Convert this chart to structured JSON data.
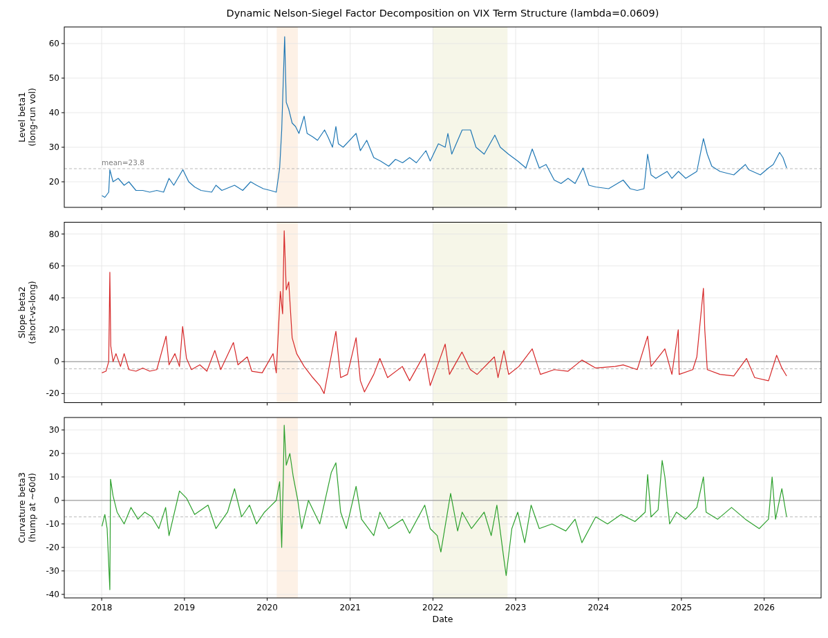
{
  "chart_data": [
    {
      "type": "line",
      "title": "Dynamic Nelson-Siegel Factor Decomposition on VIX Term Structure (lambda=0.0609)",
      "ylabel": "Level beta1\n(long-run vol)",
      "xlim": [
        "2017-07-20",
        "2026-09-09"
      ],
      "ylim": [
        12.6,
        64.8
      ],
      "yticks": [
        20,
        30,
        40,
        50,
        60
      ],
      "xticks": [
        {
          "value": "2018-01-01",
          "label": null
        },
        {
          "value": "2019-01-01",
          "label": null
        },
        {
          "value": "2020-01-01",
          "label": null
        },
        {
          "value": "2021-01-01",
          "label": null
        },
        {
          "value": "2022-01-01",
          "label": null
        },
        {
          "value": "2023-01-01",
          "label": null
        },
        {
          "value": "2024-01-01",
          "label": null
        },
        {
          "value": "2025-01-01",
          "label": null
        },
        {
          "value": "2026-01-01",
          "label": null
        }
      ],
      "tick_labels": "y",
      "grid": true,
      "line_style": "solid",
      "ref_lines": [
        {
          "axis": "y",
          "value": 23.8,
          "label": "mean=23.8",
          "color": "#b0b0b0",
          "line_style": "dashed"
        }
      ],
      "bands": [
        {
          "axis": "x",
          "from": "2020-02-12",
          "to": "2020-05-15",
          "color": "#fdf1e6"
        },
        {
          "axis": "x",
          "from": "2022-01-01",
          "to": "2022-11-26",
          "color": "#f6f6e8"
        }
      ],
      "series": [
        {
          "color": "#1f77b4",
          "x": [
            "2018-01-02",
            "2018-01-15",
            "2018-02-01",
            "2018-02-06",
            "2018-02-20",
            "2018-03-15",
            "2018-04-10",
            "2018-05-01",
            "2018-06-01",
            "2018-07-01",
            "2018-08-01",
            "2018-09-01",
            "2018-10-01",
            "2018-10-25",
            "2018-11-15",
            "2018-12-25",
            "2019-01-20",
            "2019-02-15",
            "2019-03-15",
            "2019-05-01",
            "2019-05-20",
            "2019-06-15",
            "2019-08-10",
            "2019-09-15",
            "2019-10-20",
            "2019-11-15",
            "2019-12-15",
            "2020-01-15",
            "2020-02-10",
            "2020-02-25",
            "2020-03-05",
            "2020-03-18",
            "2020-03-25",
            "2020-04-05",
            "2020-04-20",
            "2020-05-05",
            "2020-05-20",
            "2020-06-12",
            "2020-06-25",
            "2020-07-20",
            "2020-08-10",
            "2020-09-10",
            "2020-09-25",
            "2020-10-15",
            "2020-10-30",
            "2020-11-10",
            "2020-12-01",
            "2021-01-27",
            "2021-02-15",
            "2021-03-15",
            "2021-04-15",
            "2021-05-15",
            "2021-06-20",
            "2021-07-20",
            "2021-08-20",
            "2021-09-20",
            "2021-10-20",
            "2021-12-01",
            "2021-12-20",
            "2022-01-25",
            "2022-02-24",
            "2022-03-08",
            "2022-03-25",
            "2022-05-10",
            "2022-06-16",
            "2022-07-10",
            "2022-08-15",
            "2022-10-01",
            "2022-10-25",
            "2022-11-30",
            "2023-01-10",
            "2023-02-15",
            "2023-03-15",
            "2023-04-15",
            "2023-05-15",
            "2023-06-20",
            "2023-07-20",
            "2023-08-20",
            "2023-09-20",
            "2023-10-25",
            "2023-11-20",
            "2023-12-20",
            "2024-02-15",
            "2024-04-19",
            "2024-05-20",
            "2024-06-20",
            "2024-07-20",
            "2024-08-05",
            "2024-08-20",
            "2024-09-10",
            "2024-10-30",
            "2024-11-20",
            "2024-12-19",
            "2025-01-20",
            "2025-03-10",
            "2025-04-08",
            "2025-04-25",
            "2025-05-15",
            "2025-06-20",
            "2025-07-20",
            "2025-08-20",
            "2025-10-10",
            "2025-10-25",
            "2025-12-15",
            "2026-01-20",
            "2026-02-10",
            "2026-03-10",
            "2026-03-25",
            "2026-04-10"
          ],
          "values": [
            16,
            15.5,
            17,
            23.5,
            20,
            21,
            19,
            20,
            17.5,
            17.5,
            17,
            17.5,
            17,
            21,
            19,
            23.5,
            20,
            18.5,
            17.5,
            17,
            19,
            17.5,
            19,
            17.5,
            20,
            19,
            18,
            17.5,
            17,
            24,
            35,
            62,
            43,
            41,
            37,
            36,
            34,
            39,
            34,
            33,
            32,
            35,
            33,
            30,
            36,
            31,
            30,
            34,
            29,
            32,
            27,
            26,
            24.5,
            26.5,
            25.5,
            27,
            25.5,
            29,
            26,
            31,
            30,
            34,
            28,
            35,
            35,
            30,
            28,
            33.5,
            30,
            28,
            26,
            24,
            29.5,
            24,
            25,
            20.5,
            19.5,
            21,
            19.5,
            24,
            19,
            18.5,
            18,
            20.5,
            18,
            17.5,
            18,
            28,
            22,
            21,
            23,
            21,
            23,
            21,
            23,
            32.5,
            28,
            24.5,
            23,
            22.5,
            22,
            25,
            23.5,
            22,
            24,
            25,
            28.5,
            27,
            24
          ]
        }
      ]
    },
    {
      "type": "line",
      "ylabel": "Slope beta2\n(short-vs-long)",
      "xlim": [
        "2017-07-20",
        "2026-09-09"
      ],
      "ylim": [
        -25.7,
        87.4
      ],
      "yticks": [
        -20,
        0,
        20,
        40,
        60,
        80
      ],
      "xticks": [
        {
          "value": "2018-01-01",
          "label": null
        },
        {
          "value": "2019-01-01",
          "label": null
        },
        {
          "value": "2020-01-01",
          "label": null
        },
        {
          "value": "2021-01-01",
          "label": null
        },
        {
          "value": "2022-01-01",
          "label": null
        },
        {
          "value": "2023-01-01",
          "label": null
        },
        {
          "value": "2024-01-01",
          "label": null
        },
        {
          "value": "2025-01-01",
          "label": null
        },
        {
          "value": "2026-01-01",
          "label": null
        }
      ],
      "tick_labels": "y",
      "grid": true,
      "line_style": "solid",
      "ref_lines": [
        {
          "axis": "y",
          "value": 0,
          "color": "#808080",
          "line_style": "solid"
        },
        {
          "axis": "y",
          "value": -4.5,
          "color": "#b0b0b0",
          "line_style": "dashed"
        }
      ],
      "bands": [
        {
          "axis": "x",
          "from": "2020-02-12",
          "to": "2020-05-15",
          "color": "#fdf1e6"
        },
        {
          "axis": "x",
          "from": "2022-01-01",
          "to": "2022-11-26",
          "color": "#f6f6e8"
        }
      ],
      "series": [
        {
          "color": "#d62728",
          "x": [
            "2018-01-02",
            "2018-01-20",
            "2018-02-01",
            "2018-02-06",
            "2018-02-10",
            "2018-02-20",
            "2018-03-05",
            "2018-03-25",
            "2018-04-10",
            "2018-05-01",
            "2018-06-01",
            "2018-07-01",
            "2018-08-01",
            "2018-09-01",
            "2018-10-12",
            "2018-10-25",
            "2018-11-20",
            "2018-12-10",
            "2018-12-24",
            "2019-01-10",
            "2019-02-01",
            "2019-03-10",
            "2019-04-10",
            "2019-05-15",
            "2019-06-10",
            "2019-08-05",
            "2019-08-25",
            "2019-10-05",
            "2019-10-25",
            "2019-12-10",
            "2020-01-27",
            "2020-02-10",
            "2020-02-28",
            "2020-03-09",
            "2020-03-16",
            "2020-03-25",
            "2020-04-05",
            "2020-04-20",
            "2020-05-10",
            "2020-06-12",
            "2020-07-20",
            "2020-08-20",
            "2020-09-08",
            "2020-10-30",
            "2020-11-20",
            "2020-12-20",
            "2021-01-27",
            "2021-02-15",
            "2021-03-05",
            "2021-04-15",
            "2021-05-12",
            "2021-06-15",
            "2021-08-19",
            "2021-09-20",
            "2021-11-26",
            "2021-12-20",
            "2022-01-20",
            "2022-02-24",
            "2022-03-15",
            "2022-05-09",
            "2022-06-15",
            "2022-07-15",
            "2022-09-29",
            "2022-10-15",
            "2022-11-10",
            "2022-12-01",
            "2023-01-15",
            "2023-03-15",
            "2023-04-20",
            "2023-06-20",
            "2023-08-20",
            "2023-10-20",
            "2023-12-20",
            "2024-03-15",
            "2024-04-19",
            "2024-06-20",
            "2024-08-05",
            "2024-08-20",
            "2024-10-20",
            "2024-11-20",
            "2024-12-18",
            "2024-12-22",
            "2025-02-20",
            "2025-03-10",
            "2025-04-08",
            "2025-04-14",
            "2025-04-25",
            "2025-06-20",
            "2025-08-20",
            "2025-10-15",
            "2025-11-20",
            "2026-01-20",
            "2026-02-25",
            "2026-03-20",
            "2026-04-10"
          ],
          "values": [
            -7,
            -6,
            0,
            56,
            10,
            0,
            5,
            -3,
            5,
            -5,
            -6,
            -4,
            -6,
            -5,
            16,
            -2,
            5,
            -3,
            22,
            2,
            -5,
            -2,
            -6,
            7,
            -5,
            12,
            -2,
            3,
            -6,
            -7,
            5,
            -7,
            44,
            30,
            82,
            45,
            50,
            15,
            5,
            -3,
            -10,
            -15,
            -20,
            19,
            -10,
            -8,
            15,
            -12,
            -19,
            -8,
            2,
            -10,
            -3,
            -12,
            5,
            -15,
            -3,
            11,
            -8,
            6,
            -5,
            -8,
            3,
            -10,
            7,
            -8,
            -3,
            8,
            -8,
            -5,
            -6,
            1,
            -4,
            -3,
            -2,
            -5,
            16,
            -3,
            8,
            -8,
            20,
            -8,
            -5,
            3,
            46,
            20,
            -5,
            -8,
            -9,
            2,
            -10,
            -12,
            4,
            -4,
            -9
          ]
        }
      ]
    },
    {
      "type": "line",
      "ylabel": "Curvature beta3\n(hump at ~60d)",
      "xlabel": "Date",
      "xlim": [
        "2017-07-20",
        "2026-09-09"
      ],
      "ylim": [
        -41.5,
        35.3
      ],
      "yticks": [
        -40,
        -30,
        -20,
        -10,
        0,
        10,
        20,
        30
      ],
      "xticks": [
        {
          "value": "2018-01-01",
          "label": "2018"
        },
        {
          "value": "2019-01-01",
          "label": "2019"
        },
        {
          "value": "2020-01-01",
          "label": "2020"
        },
        {
          "value": "2021-01-01",
          "label": "2021"
        },
        {
          "value": "2022-01-01",
          "label": "2022"
        },
        {
          "value": "2023-01-01",
          "label": "2023"
        },
        {
          "value": "2024-01-01",
          "label": "2024"
        },
        {
          "value": "2025-01-01",
          "label": "2025"
        },
        {
          "value": "2026-01-01",
          "label": "2026"
        }
      ],
      "grid": true,
      "line_style": "solid",
      "ref_lines": [
        {
          "axis": "y",
          "value": 0,
          "color": "#808080",
          "line_style": "solid"
        },
        {
          "axis": "y",
          "value": -7,
          "color": "#b0b0b0",
          "line_style": "dashed"
        }
      ],
      "bands": [
        {
          "axis": "x",
          "from": "2020-02-12",
          "to": "2020-05-15",
          "color": "#fdf1e6"
        },
        {
          "axis": "x",
          "from": "2022-01-01",
          "to": "2022-11-26",
          "color": "#f6f6e8"
        }
      ],
      "series": [
        {
          "color": "#2ca02c",
          "x": [
            "2018-01-02",
            "2018-01-15",
            "2018-01-25",
            "2018-02-06",
            "2018-02-09",
            "2018-02-20",
            "2018-03-10",
            "2018-04-10",
            "2018-05-10",
            "2018-06-10",
            "2018-07-10",
            "2018-08-10",
            "2018-09-10",
            "2018-10-10",
            "2018-10-25",
            "2018-12-10",
            "2019-01-10",
            "2019-02-15",
            "2019-04-15",
            "2019-05-20",
            "2019-07-10",
            "2019-08-10",
            "2019-09-10",
            "2019-10-15",
            "2019-11-15",
            "2019-12-20",
            "2020-01-10",
            "2020-02-10",
            "2020-02-25",
            "2020-03-05",
            "2020-03-12",
            "2020-03-16",
            "2020-03-25",
            "2020-04-10",
            "2020-04-25",
            "2020-05-15",
            "2020-06-01",
            "2020-07-01",
            "2020-08-20",
            "2020-10-10",
            "2020-10-30",
            "2020-11-20",
            "2020-12-15",
            "2021-01-27",
            "2021-02-20",
            "2021-04-15",
            "2021-05-12",
            "2021-06-20",
            "2021-08-20",
            "2021-09-20",
            "2021-11-26",
            "2021-12-20",
            "2022-01-20",
            "2022-02-05",
            "2022-03-20",
            "2022-04-20",
            "2022-05-10",
            "2022-06-20",
            "2022-08-15",
            "2022-09-15",
            "2022-10-10",
            "2022-11-10",
            "2022-11-20",
            "2022-12-15",
            "2023-01-10",
            "2023-02-10",
            "2023-03-10",
            "2023-04-15",
            "2023-06-10",
            "2023-08-10",
            "2023-09-20",
            "2023-10-20",
            "2023-12-20",
            "2024-02-10",
            "2024-04-10",
            "2024-06-10",
            "2024-07-25",
            "2024-08-05",
            "2024-08-20",
            "2024-09-20",
            "2024-10-08",
            "2024-10-20",
            "2024-11-10",
            "2024-12-10",
            "2025-01-20",
            "2025-03-10",
            "2025-04-08",
            "2025-04-20",
            "2025-06-10",
            "2025-08-10",
            "2025-10-10",
            "2025-12-10",
            "2026-01-20",
            "2026-02-05",
            "2026-02-20",
            "2026-03-20",
            "2026-04-10"
          ],
          "values": [
            -11,
            -6,
            -12,
            -38,
            9,
            2,
            -5,
            -10,
            -3,
            -8,
            -5,
            -7,
            -12,
            -3,
            -15,
            4,
            1,
            -6,
            -2,
            -12,
            -5,
            5,
            -7,
            -2,
            -10,
            -5,
            -3,
            0,
            8,
            -20,
            10,
            32,
            15,
            20,
            10,
            0,
            -12,
            0,
            -10,
            12,
            16,
            -5,
            -12,
            6,
            -8,
            -15,
            -5,
            -12,
            -8,
            -14,
            -2,
            -12,
            -15,
            -22,
            3,
            -13,
            -5,
            -12,
            -5,
            -15,
            -2,
            -25,
            -32,
            -12,
            -5,
            -18,
            -2,
            -12,
            -10,
            -13,
            -8,
            -18,
            -7,
            -10,
            -6,
            -9,
            -5,
            11,
            -7,
            -4,
            17,
            10,
            -10,
            -5,
            -8,
            -3,
            10,
            -5,
            -8,
            -3,
            -8,
            -12,
            -8,
            10,
            -8,
            5,
            -7
          ]
        }
      ]
    }
  ]
}
